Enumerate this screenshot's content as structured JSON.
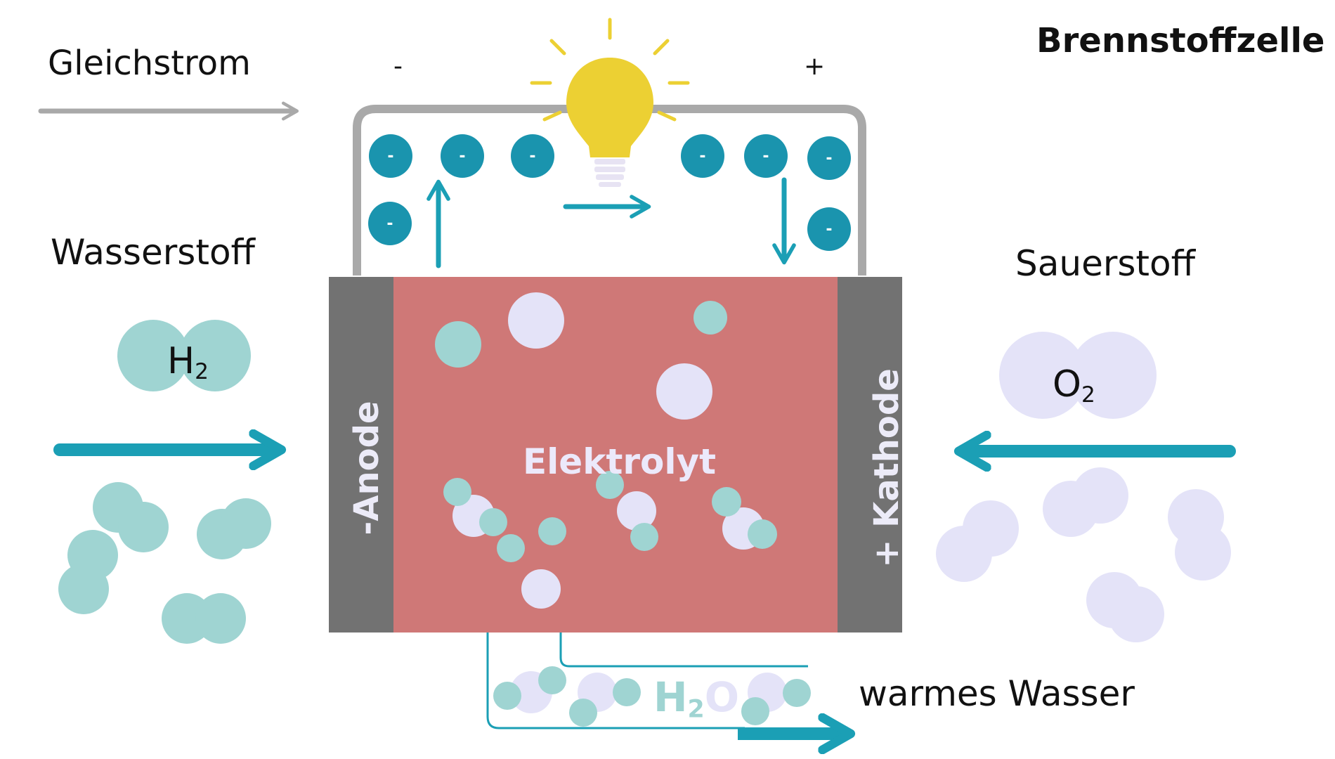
{
  "title": "Brennstoffzelle",
  "labels": {
    "current": "Gleichstrom",
    "minus": "-",
    "plus": "+",
    "hydrogen": "Wasserstoff",
    "oxygen": "Sauerstoff",
    "electrolyte": "Elektrolyt",
    "anode": "-Anode",
    "cathode": "+ Kathode",
    "output": "warmes Wasser"
  },
  "formulas": {
    "h2": {
      "base": "H",
      "sub": "2"
    },
    "o2": {
      "base": "O",
      "sub": "2"
    },
    "h2o": {
      "base": "H",
      "sub": "2",
      "tail": "O"
    }
  },
  "electron_symbol": "-",
  "colors": {
    "teal": "#1b9fb5",
    "electron": "#1a94ae",
    "hydrogen_atom": "#9fd4d2",
    "oxygen_atom": "#e4e3f8",
    "electrolyte": "#cf7877",
    "electrode": "#727272",
    "wire": "#a9a9a9",
    "bulb": "#ecd033"
  }
}
